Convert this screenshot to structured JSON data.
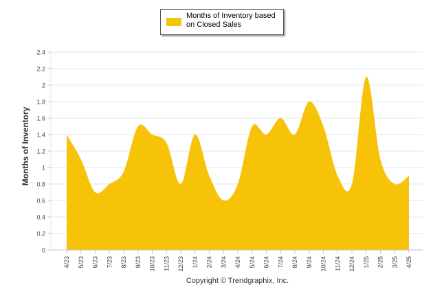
{
  "chart_data": {
    "type": "area",
    "series": [
      {
        "name": "Months of Inventory based on Closed Sales",
        "color": "#F7C308",
        "values": [
          1.4,
          1.1,
          0.7,
          0.8,
          0.95,
          1.5,
          1.4,
          1.3,
          0.8,
          1.4,
          0.9,
          0.6,
          0.8,
          1.5,
          1.4,
          1.6,
          1.4,
          1.8,
          1.5,
          0.9,
          0.8,
          2.1,
          1.1,
          0.8,
          0.9
        ]
      }
    ],
    "categories": [
      "4/23",
      "5/23",
      "6/23",
      "7/23",
      "8/23",
      "9/23",
      "10/23",
      "11/23",
      "12/23",
      "1/24",
      "2/24",
      "3/24",
      "4/24",
      "5/24",
      "6/24",
      "7/24",
      "8/24",
      "9/24",
      "10/24",
      "11/24",
      "12/24",
      "1/25",
      "2/25",
      "3/25",
      "4/25"
    ],
    "ylabel": "Months of Inventory",
    "ylim": [
      0,
      2.4
    ],
    "yticks": [
      "0",
      "0.2",
      "0.4",
      "0.6",
      "0.8",
      "1",
      "1.2",
      "1.4",
      "1.6",
      "1.8",
      "2",
      "2.2",
      "2.4"
    ],
    "grid": true,
    "legend_position": "top-center"
  },
  "legend": {
    "label": "Months of Inventory based on Closed Sales"
  },
  "copyright": "Copyright © Trendgraphix, Inc."
}
